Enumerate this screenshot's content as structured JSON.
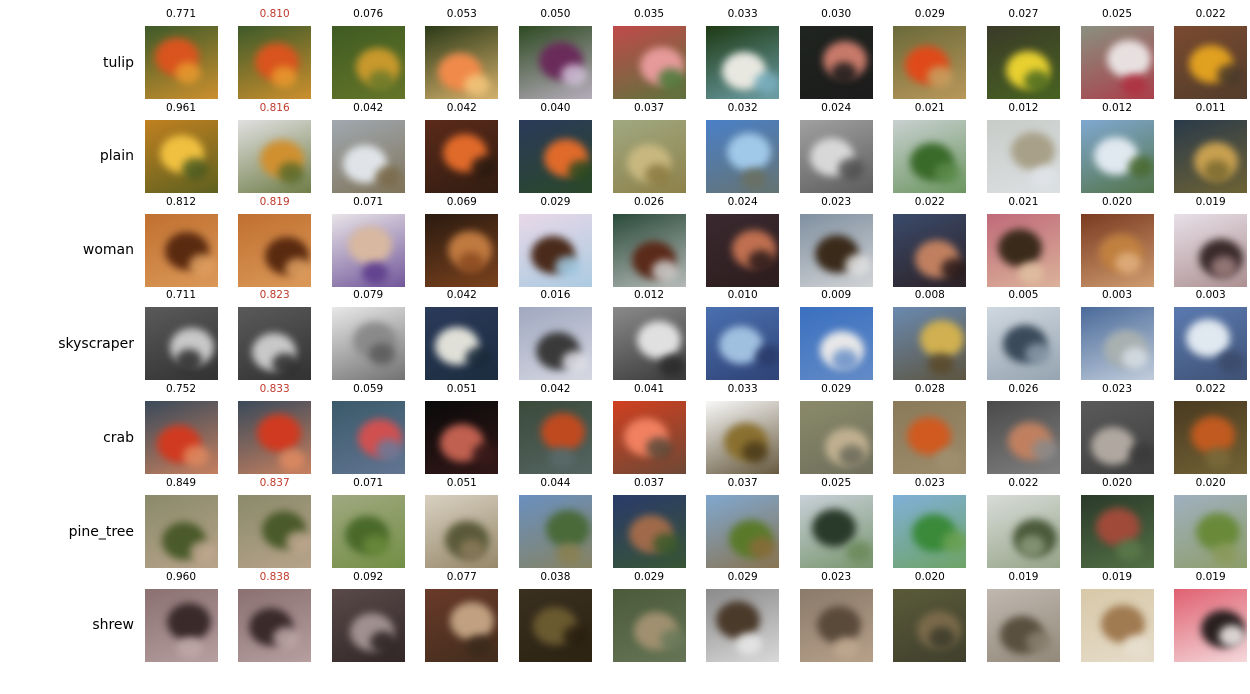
{
  "colors": {
    "highlight_score": "#c0392b",
    "normal_score": "#000000"
  },
  "rows": [
    {
      "label": "tulip",
      "highlight_index": 1,
      "scores": [
        "0.771",
        "0.810",
        "0.076",
        "0.053",
        "0.050",
        "0.035",
        "0.033",
        "0.030",
        "0.029",
        "0.027",
        "0.025",
        "0.022"
      ],
      "thumbs": [
        {
          "bg": "#3d5a2a",
          "fg": "#d9541e",
          "fg2": "#e89a2e"
        },
        {
          "bg": "#3d5a2a",
          "fg": "#d9541e",
          "fg2": "#e89a2e"
        },
        {
          "bg": "#3f5b22",
          "fg": "#c9992c",
          "fg2": "#6b7a2a"
        },
        {
          "bg": "#2b3a18",
          "fg": "#f08a4a",
          "fg2": "#f4c77c"
        },
        {
          "bg": "#2e4a22",
          "fg": "#6a2b5a",
          "fg2": "#d0c0d8"
        },
        {
          "bg": "#c04a4a",
          "fg": "#e69a9a",
          "fg2": "#4a7a3a"
        },
        {
          "bg": "#1e3a14",
          "fg": "#e8e8e0",
          "fg2": "#7ab0c0"
        },
        {
          "bg": "#202420",
          "fg": "#c87a6a",
          "fg2": "#1a1a1a"
        },
        {
          "bg": "#6a6a3a",
          "fg": "#e04a1a",
          "fg2": "#c8a060"
        },
        {
          "bg": "#3a3a28",
          "fg": "#e8d030",
          "fg2": "#4a6a20"
        },
        {
          "bg": "#8a9080",
          "fg": "#e8e0e0",
          "fg2": "#b03040"
        },
        {
          "bg": "#7a4a30",
          "fg": "#e0a020",
          "fg2": "#4a3a2a"
        }
      ]
    },
    {
      "label": "plain",
      "highlight_index": 1,
      "scores": [
        "0.961",
        "0.816",
        "0.042",
        "0.042",
        "0.040",
        "0.037",
        "0.032",
        "0.024",
        "0.021",
        "0.012",
        "0.012",
        "0.011"
      ],
      "thumbs": [
        {
          "bg": "#c08020",
          "fg": "#f0c040",
          "fg2": "#4a5a20"
        },
        {
          "bg": "#e0e0e0",
          "fg": "#d09030",
          "fg2": "#5a6a2a"
        },
        {
          "bg": "#a0a8b0",
          "fg": "#e0e4e8",
          "fg2": "#7a6a4a"
        },
        {
          "bg": "#5a2a1a",
          "fg": "#e06a2a",
          "fg2": "#2a1a10"
        },
        {
          "bg": "#2a3a5a",
          "fg": "#e06a2a",
          "fg2": "#2a4a20"
        },
        {
          "bg": "#a0a880",
          "fg": "#c8b880",
          "fg2": "#8a7a40"
        },
        {
          "bg": "#4a80c8",
          "fg": "#a0c8e8",
          "fg2": "#6a7060"
        },
        {
          "bg": "#a0a0a0",
          "fg": "#d8d8d8",
          "fg2": "#505050"
        },
        {
          "bg": "#c8d0d0",
          "fg": "#3a6a2a",
          "fg2": "#5a8a4a"
        },
        {
          "bg": "#c8ccc8",
          "fg": "#a8a088",
          "fg2": "#e0e4e8"
        },
        {
          "bg": "#80a8d0",
          "fg": "#e0e8f0",
          "fg2": "#4a6a30"
        },
        {
          "bg": "#2a3a4a",
          "fg": "#c8a050",
          "fg2": "#7a6a30"
        }
      ]
    },
    {
      "label": "woman",
      "highlight_index": 1,
      "scores": [
        "0.812",
        "0.819",
        "0.071",
        "0.069",
        "0.029",
        "0.026",
        "0.024",
        "0.023",
        "0.022",
        "0.021",
        "0.020",
        "0.019"
      ],
      "thumbs": [
        {
          "bg": "#c07030",
          "fg": "#5a2a10",
          "fg2": "#e0a060"
        },
        {
          "bg": "#c07030",
          "fg": "#5a2a10",
          "fg2": "#e0a060"
        },
        {
          "bg": "#e8e4e8",
          "fg": "#d8b8a0",
          "fg2": "#5a3a8a"
        },
        {
          "bg": "#2a1a10",
          "fg": "#c07a40",
          "fg2": "#8a4a20"
        },
        {
          "bg": "#e8d8e8",
          "fg": "#4a2a1a",
          "fg2": "#a0c8e0"
        },
        {
          "bg": "#2a4a3a",
          "fg": "#5a2a1a",
          "fg2": "#d0d0d0"
        },
        {
          "bg": "#3a2a30",
          "fg": "#c07050",
          "fg2": "#2a1a1a"
        },
        {
          "bg": "#8090a0",
          "fg": "#3a2a1a",
          "fg2": "#e0e0e0"
        },
        {
          "bg": "#3a4a6a",
          "fg": "#c08060",
          "fg2": "#2a1a1a"
        },
        {
          "bg": "#c06a7a",
          "fg": "#3a2a1a",
          "fg2": "#e0c0a0"
        },
        {
          "bg": "#7a3a20",
          "fg": "#c08040",
          "fg2": "#e0b080"
        },
        {
          "bg": "#e8e0e8",
          "fg": "#3a2a2a",
          "fg2": "#a08080"
        }
      ]
    },
    {
      "label": "skyscraper",
      "highlight_index": 1,
      "scores": [
        "0.711",
        "0.823",
        "0.079",
        "0.042",
        "0.016",
        "0.012",
        "0.010",
        "0.009",
        "0.008",
        "0.005",
        "0.003",
        "0.003"
      ],
      "thumbs": [
        {
          "bg": "#5a5a5a",
          "fg": "#c8c8c8",
          "fg2": "#2a2a2a"
        },
        {
          "bg": "#5a5a5a",
          "fg": "#c8c8c8",
          "fg2": "#2a2a2a"
        },
        {
          "bg": "#e8e8e8",
          "fg": "#8a8a8a",
          "fg2": "#5a5a5a"
        },
        {
          "bg": "#2a3a5a",
          "fg": "#e0e0d8",
          "fg2": "#1a2a3a"
        },
        {
          "bg": "#a0a8c0",
          "fg": "#3a3a3a",
          "fg2": "#e0e0e8"
        },
        {
          "bg": "#8a8a8a",
          "fg": "#e0e0e0",
          "fg2": "#2a2a2a"
        },
        {
          "bg": "#4a70b0",
          "fg": "#a0c0e0",
          "fg2": "#2a3a6a"
        },
        {
          "bg": "#3a70c0",
          "fg": "#e8e8e8",
          "fg2": "#6a90c8"
        },
        {
          "bg": "#6a8ab0",
          "fg": "#d0b050",
          "fg2": "#5a4a2a"
        },
        {
          "bg": "#d0d8e0",
          "fg": "#3a4a5a",
          "fg2": "#8a9aa8"
        },
        {
          "bg": "#4a6a9a",
          "fg": "#a8b0b0",
          "fg2": "#d8e0e8"
        },
        {
          "bg": "#5a7ab0",
          "fg": "#e0e8f0",
          "fg2": "#3a4a6a"
        }
      ]
    },
    {
      "label": "crab",
      "highlight_index": 1,
      "scores": [
        "0.752",
        "0.833",
        "0.059",
        "0.051",
        "0.042",
        "0.041",
        "0.033",
        "0.029",
        "0.028",
        "0.026",
        "0.023",
        "0.022"
      ],
      "thumbs": [
        {
          "bg": "#3a4a5a",
          "fg": "#d03a20",
          "fg2": "#e08a60"
        },
        {
          "bg": "#3a4a5a",
          "fg": "#d03a20",
          "fg2": "#e08a60"
        },
        {
          "bg": "#3a5a6a",
          "fg": "#d05050",
          "fg2": "#6a7a9a"
        },
        {
          "bg": "#0a0a0a",
          "fg": "#c06050",
          "fg2": "#3a1a1a"
        },
        {
          "bg": "#3a4a3a",
          "fg": "#c04a20",
          "fg2": "#5a6a6a"
        },
        {
          "bg": "#d04020",
          "fg": "#f08060",
          "fg2": "#5a4a3a"
        },
        {
          "bg": "#f8f8f8",
          "fg": "#8a7030",
          "fg2": "#4a3a1a"
        },
        {
          "bg": "#8a8a6a",
          "fg": "#c0b090",
          "fg2": "#6a6a5a"
        },
        {
          "bg": "#8a7a5a",
          "fg": "#d05a20",
          "fg2": "#a09070"
        },
        {
          "bg": "#4a4a4a",
          "fg": "#c08060",
          "fg2": "#8a8a8a"
        },
        {
          "bg": "#5a5a5a",
          "fg": "#b0a8a0",
          "fg2": "#3a3a3a"
        },
        {
          "bg": "#4a3a20",
          "fg": "#c05a20",
          "fg2": "#7a6a3a"
        }
      ]
    },
    {
      "label": "pine_tree",
      "highlight_index": 1,
      "scores": [
        "0.849",
        "0.837",
        "0.071",
        "0.051",
        "0.044",
        "0.037",
        "0.037",
        "0.025",
        "0.023",
        "0.022",
        "0.020",
        "0.020"
      ],
      "thumbs": [
        {
          "bg": "#8a8a6a",
          "fg": "#4a5a2a",
          "fg2": "#c0a890"
        },
        {
          "bg": "#8a8a6a",
          "fg": "#4a5a2a",
          "fg2": "#c0a890"
        },
        {
          "bg": "#a0a880",
          "fg": "#4a6a2a",
          "fg2": "#6a8a3a"
        },
        {
          "bg": "#d8d0c0",
          "fg": "#5a5a3a",
          "fg2": "#8a7a5a"
        },
        {
          "bg": "#6a90c0",
          "fg": "#4a6a3a",
          "fg2": "#8a8050"
        },
        {
          "bg": "#2a3a6a",
          "fg": "#a06a4a",
          "fg2": "#3a5a2a"
        },
        {
          "bg": "#80a8d0",
          "fg": "#5a7a2a",
          "fg2": "#8a6a3a"
        },
        {
          "bg": "#c8d0d8",
          "fg": "#2a3a2a",
          "fg2": "#6a8a5a"
        },
        {
          "bg": "#80b0d8",
          "fg": "#3a8a3a",
          "fg2": "#6aa050"
        },
        {
          "bg": "#d8dcd8",
          "fg": "#4a5a3a",
          "fg2": "#8a9a7a"
        },
        {
          "bg": "#2a3a2a",
          "fg": "#a04a3a",
          "fg2": "#5a7a4a"
        },
        {
          "bg": "#a0b0c0",
          "fg": "#6a8a3a",
          "fg2": "#8a9a5a"
        }
      ]
    },
    {
      "label": "shrew",
      "highlight_index": 1,
      "scores": [
        "0.960",
        "0.838",
        "0.092",
        "0.077",
        "0.038",
        "0.029",
        "0.029",
        "0.023",
        "0.020",
        "0.019",
        "0.019",
        "0.019"
      ],
      "thumbs": [
        {
          "bg": "#8a7070",
          "fg": "#3a2a2a",
          "fg2": "#c0a8a8"
        },
        {
          "bg": "#8a7070",
          "fg": "#3a2a2a",
          "fg2": "#c0a8a8"
        },
        {
          "bg": "#5a4a4a",
          "fg": "#a09090",
          "fg2": "#2a2020"
        },
        {
          "bg": "#6a3a2a",
          "fg": "#c0a080",
          "fg2": "#3a2a1a"
        },
        {
          "bg": "#3a3020",
          "fg": "#6a5a30",
          "fg2": "#2a2010"
        },
        {
          "bg": "#4a5a3a",
          "fg": "#a09070",
          "fg2": "#6a7a5a"
        },
        {
          "bg": "#8a8a8a",
          "fg": "#4a3a2a",
          "fg2": "#e8e8e8"
        },
        {
          "bg": "#8a7a6a",
          "fg": "#5a4a3a",
          "fg2": "#c0a890"
        },
        {
          "bg": "#5a5a3a",
          "fg": "#7a6a4a",
          "fg2": "#3a3a2a"
        },
        {
          "bg": "#c0b8b0",
          "fg": "#5a5040",
          "fg2": "#8a8070"
        },
        {
          "bg": "#d8c8a8",
          "fg": "#a07a50",
          "fg2": "#e8e0d0"
        },
        {
          "bg": "#e06070",
          "fg": "#2a2020",
          "fg2": "#f8f0f0"
        }
      ]
    }
  ]
}
